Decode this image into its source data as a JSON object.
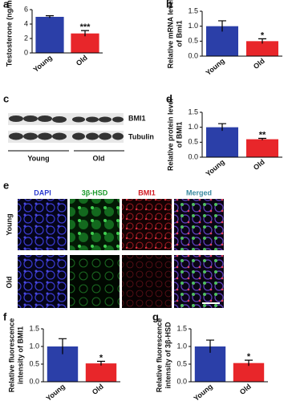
{
  "chart_data": [
    {
      "type": "bar",
      "panel": "a",
      "ylabel": [
        "Testosterone (ng/ml)"
      ],
      "categories": [
        "Young",
        "Old"
      ],
      "values": [
        5.0,
        2.7
      ],
      "errors": [
        0.15,
        0.4
      ],
      "colors": [
        "#2b3fa8",
        "#e8262a"
      ],
      "significance": "***",
      "ylim": [
        0,
        6
      ],
      "yticks": [
        0,
        2,
        4,
        6
      ]
    },
    {
      "type": "bar",
      "panel": "b",
      "ylabel": [
        "Relative mRNA level",
        "of Bmi1"
      ],
      "categories": [
        "Young",
        "Old"
      ],
      "values": [
        1.0,
        0.5
      ],
      "errors": [
        0.18,
        0.08
      ],
      "colors": [
        "#2b3fa8",
        "#e8262a"
      ],
      "significance": "*",
      "ylim": [
        0,
        1.5
      ],
      "yticks": [
        {
          "value": 0,
          "label": "0.0"
        },
        0.5,
        {
          "value": 1,
          "label": "1.0"
        },
        1.5
      ]
    },
    {
      "type": "bar",
      "panel": "d",
      "ylabel": [
        "Relative protein level",
        "of BMI1"
      ],
      "categories": [
        "Young",
        "Old"
      ],
      "values": [
        1.0,
        0.6
      ],
      "errors": [
        0.12,
        0.03
      ],
      "colors": [
        "#2b3fa8",
        "#e8262a"
      ],
      "significance": "**",
      "ylim": [
        0,
        1.5
      ],
      "yticks": [
        {
          "value": 0,
          "label": "0.0"
        },
        0.5,
        {
          "value": 1,
          "label": "1.0"
        },
        1.5
      ]
    },
    {
      "type": "bar",
      "panel": "f",
      "ylabel": [
        "Relative fluorescence",
        "intensity of BMI1"
      ],
      "categories": [
        "Young",
        "Old"
      ],
      "values": [
        1.0,
        0.52
      ],
      "errors": [
        0.22,
        0.06
      ],
      "colors": [
        "#2b3fa8",
        "#e8262a"
      ],
      "significance": "*",
      "ylim": [
        0,
        1.5
      ],
      "yticks": [
        {
          "value": 0,
          "label": "0.0"
        },
        0.5,
        {
          "value": 1,
          "label": "1.0"
        },
        1.5
      ]
    },
    {
      "type": "bar",
      "panel": "g",
      "ylabel": [
        "Relative fluorescence",
        "intensity of 3β-HSD"
      ],
      "categories": [
        "Young",
        "Old"
      ],
      "values": [
        1.0,
        0.53
      ],
      "errors": [
        0.18,
        0.08
      ],
      "colors": [
        "#2b3fa8",
        "#e8262a"
      ],
      "significance": "*",
      "ylim": [
        0,
        1.5
      ],
      "yticks": [
        {
          "value": 0,
          "label": "0.0"
        },
        0.5,
        {
          "value": 1,
          "label": "1.0"
        },
        1.5
      ]
    }
  ],
  "blot": {
    "panel": "c",
    "bands": [
      "BMI1",
      "Tubulin"
    ],
    "groups": [
      "Young",
      "Old"
    ]
  },
  "images": {
    "panel": "e",
    "channels": [
      "DAPI",
      "3β-HSD",
      "BMI1",
      "Merged"
    ],
    "groups": [
      "Young",
      "Old"
    ]
  }
}
